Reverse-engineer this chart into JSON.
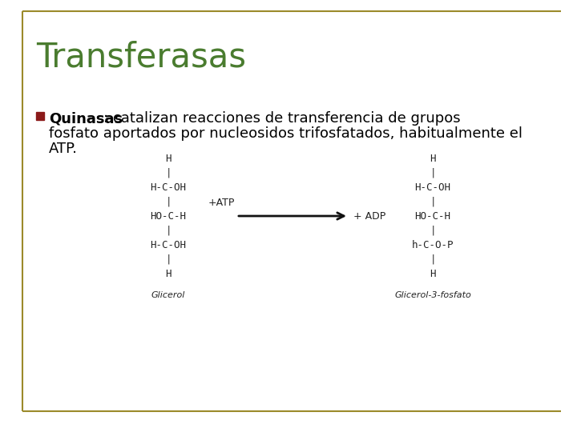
{
  "title": "Transferasas",
  "title_color": "#4a7c2f",
  "title_fontsize": 30,
  "bullet_square_color": "#8b1a1a",
  "bullet_bold": "Quinasas",
  "bullet_rest": ": catalizan reacciones de transferencia de grupos\nfosfato aportados por nucleosidos trifosfatados, habitualmente el\nATP.",
  "bullet_fontsize": 13,
  "background_color": "#ffffff",
  "border_color": "#9b8a2a",
  "mol_fontsize": 9,
  "mol_label_fontsize": 8,
  "mol_color": "#222222",
  "arrow_color": "#111111",
  "left_mol_lines": [
    "H",
    "|",
    "H-C-OH",
    "|",
    "HO-C-H",
    "|",
    "H-C-OH",
    "|",
    "H"
  ],
  "left_label": "Glicerol",
  "right_mol_lines": [
    "H",
    "|",
    "H-C-OH",
    "|",
    "HO-C-H",
    "|",
    "h-C-O-P",
    "|",
    "H"
  ],
  "right_label": "Glicerol-3-fosfato",
  "atp_label": "+ATP",
  "adp_label": "+ ADP"
}
